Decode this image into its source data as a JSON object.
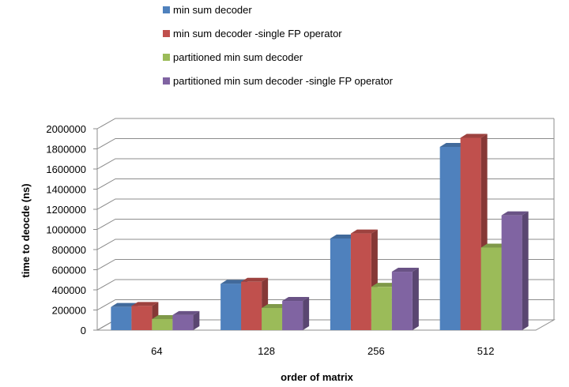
{
  "chart_data": {
    "type": "bar",
    "title": "",
    "xlabel": "order of matrix",
    "ylabel": "time to deocde (ns)",
    "categories": [
      "64",
      "128",
      "256",
      "512"
    ],
    "ylim": [
      0,
      2000000
    ],
    "yticks": [
      "0",
      "200000",
      "400000",
      "600000",
      "800000",
      "1000000",
      "1200000",
      "1400000",
      "1600000",
      "1800000",
      "2000000"
    ],
    "grid": true,
    "legend_position": "top",
    "style": "3d-clustered-column",
    "series": [
      {
        "name": "min sum decoder",
        "color": "#4F81BD",
        "values": [
          230000,
          460000,
          910000,
          1820000
        ]
      },
      {
        "name": "min sum decoder -single FP operator",
        "color": "#C0504D",
        "values": [
          240000,
          480000,
          960000,
          1910000
        ]
      },
      {
        "name": "partitioned min sum decoder",
        "color": "#9BBB59",
        "values": [
          110000,
          220000,
          430000,
          820000
        ]
      },
      {
        "name": "partitioned min sum decoder -single FP operator",
        "color": "#8064A2",
        "values": [
          150000,
          290000,
          580000,
          1140000
        ]
      }
    ]
  }
}
